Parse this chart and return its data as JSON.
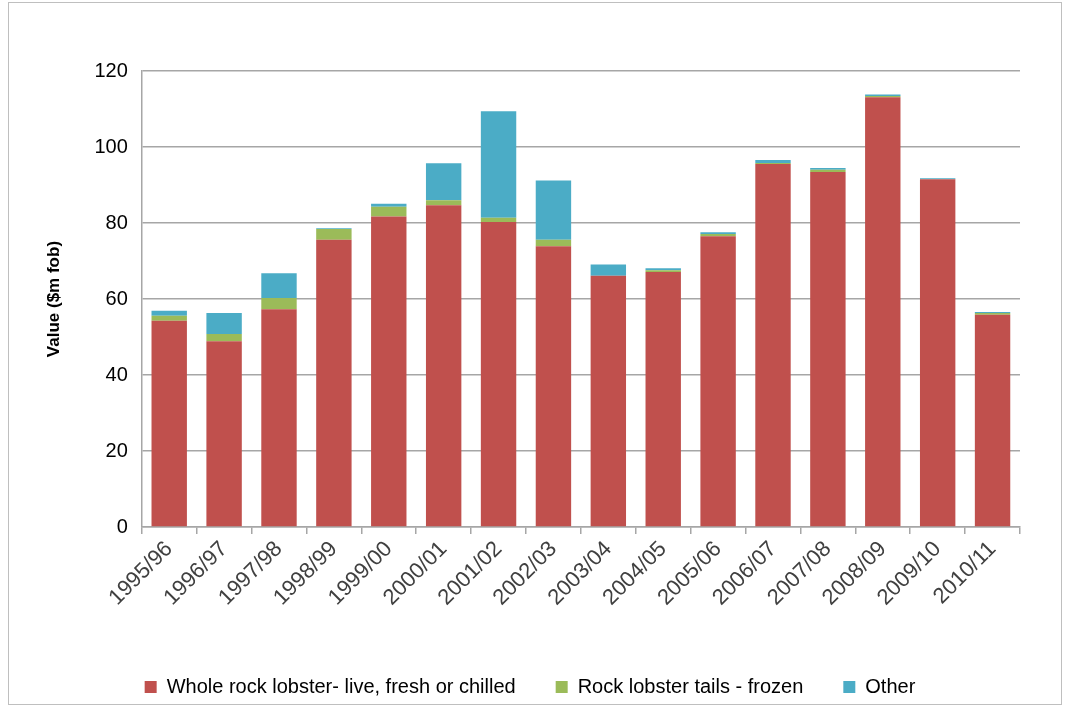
{
  "chart_data": {
    "type": "bar",
    "ylabel": "Value ($m fob)",
    "categories": [
      "1995/96",
      "1996/97",
      "1997/98",
      "1998/99",
      "1999/00",
      "2000/01",
      "2001/02",
      "2002/03",
      "2003/04",
      "2004/05",
      "2005/06",
      "2006/07",
      "2007/08",
      "2008/09",
      "2009/10",
      "2010/11"
    ],
    "series": [
      {
        "name": "Whole rock lobster- live, fresh or chilled",
        "color": "#c0504d",
        "values": [
          54.3,
          48.9,
          57.3,
          75.6,
          81.7,
          84.7,
          80.3,
          73.9,
          66.1,
          67.1,
          76.5,
          95.5,
          93.4,
          113.1,
          91.5,
          55.9
        ]
      },
      {
        "name": "Rock lobster tails - frozen",
        "color": "#9bbb59",
        "values": [
          1.3,
          1.9,
          3.0,
          2.8,
          2.6,
          1.3,
          1.1,
          1.7,
          0,
          0.5,
          0.6,
          0.3,
          0.6,
          0.3,
          0,
          0.4
        ]
      },
      {
        "name": "Other",
        "color": "#4bacc6",
        "values": [
          1.3,
          5.5,
          6.5,
          0.2,
          0.8,
          9.7,
          28.0,
          15.6,
          3.0,
          0.5,
          0.5,
          0.8,
          0.5,
          0.4,
          0.3,
          0.3
        ]
      }
    ],
    "stacked": true,
    "ylim": [
      0,
      120
    ],
    "yticks": [
      0,
      20,
      40,
      60,
      80,
      100,
      120
    ],
    "grid": "y",
    "legend": "bottom"
  }
}
